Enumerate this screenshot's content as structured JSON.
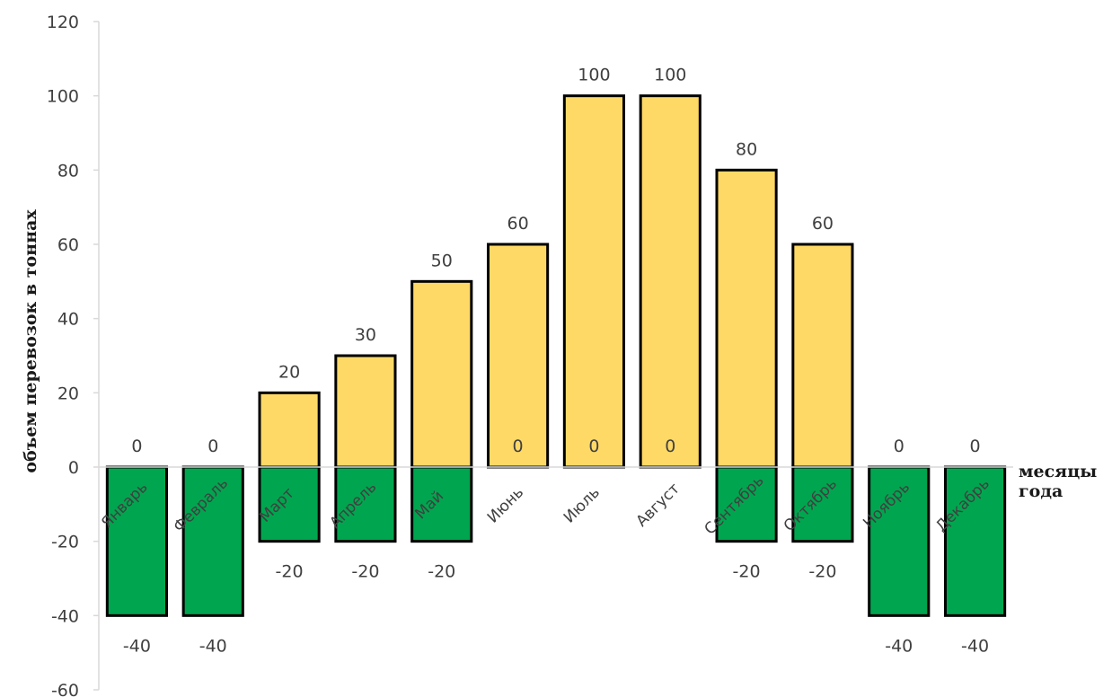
{
  "chart_data": {
    "type": "bar",
    "title": "",
    "ylabel": "объем перевозок в тоннах",
    "xlabel": [
      "месяцы",
      "года"
    ],
    "ylim": [
      -60,
      120
    ],
    "ytick_step": 20,
    "categories": [
      "Январь",
      "Февраль",
      "Март",
      "Апрель",
      "Май",
      "Июнь",
      "Июль",
      "Август",
      "Сентябрь",
      "Октябрь",
      "Ноябрь",
      "Декабрь"
    ],
    "series": [
      {
        "color": "#FFD966",
        "values": [
          0,
          0,
          20,
          30,
          50,
          60,
          100,
          100,
          80,
          60,
          0,
          0
        ]
      },
      {
        "color": "#00A64F",
        "values": [
          -40,
          -40,
          -20,
          -20,
          -20,
          0,
          0,
          0,
          -20,
          -20,
          -40,
          -40
        ]
      }
    ],
    "grid": false,
    "legend": "none"
  }
}
